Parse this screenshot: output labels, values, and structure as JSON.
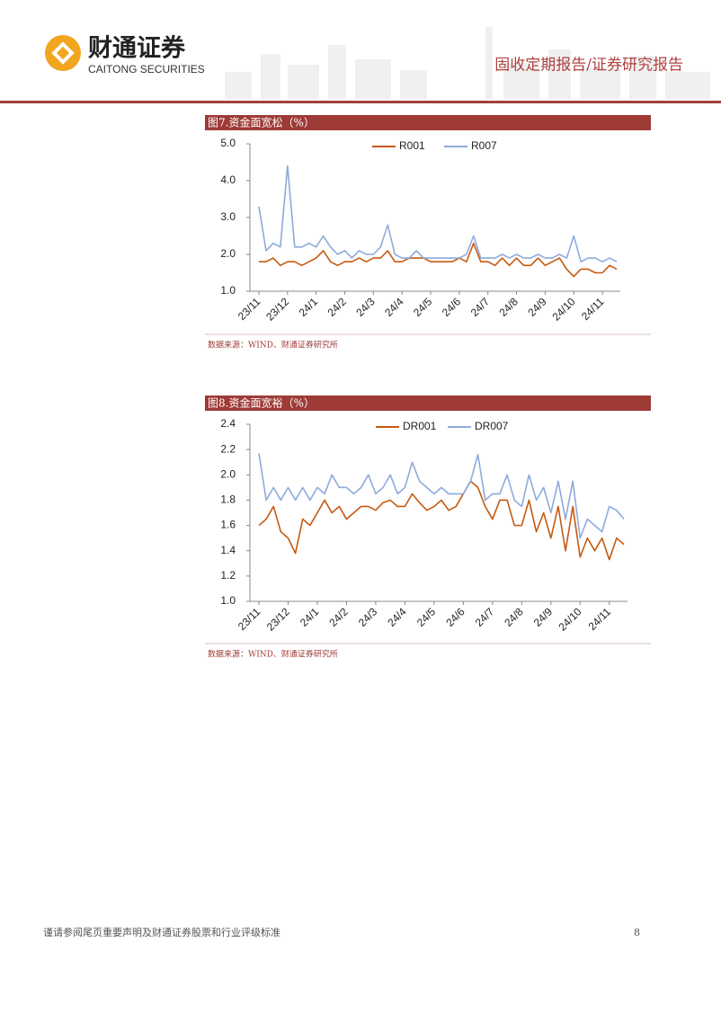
{
  "header": {
    "brand": "财通证券",
    "brand_en": "CAITONG SECURITIES",
    "report_type": "固收定期报告/证券研究报告"
  },
  "chart_data": [
    {
      "type": "line",
      "title": "图7.资金面宽松（%）",
      "source": "数据来源：WIND、财通证券研究所",
      "categories": [
        "23/11",
        null,
        null,
        null,
        "23/12",
        null,
        null,
        null,
        "24/1",
        null,
        null,
        null,
        "24/2",
        null,
        null,
        null,
        "24/3",
        null,
        null,
        null,
        "24/4",
        null,
        null,
        null,
        "24/5",
        null,
        null,
        null,
        "24/6",
        null,
        null,
        null,
        "24/7",
        null,
        null,
        null,
        "24/8",
        null,
        null,
        null,
        "24/9",
        null,
        null,
        null,
        "24/10",
        null,
        null,
        null,
        "24/11",
        null,
        null
      ],
      "series": [
        {
          "name": "R001",
          "color": "#c55a11",
          "values": [
            1.8,
            1.8,
            1.9,
            1.7,
            1.8,
            1.8,
            1.7,
            1.8,
            1.9,
            2.1,
            1.8,
            1.7,
            1.8,
            1.8,
            1.9,
            1.8,
            1.9,
            1.9,
            2.1,
            1.8,
            1.8,
            1.9,
            1.9,
            1.9,
            1.8,
            1.8,
            1.8,
            1.8,
            1.9,
            1.8,
            2.3,
            1.8,
            1.8,
            1.7,
            1.9,
            1.7,
            1.9,
            1.7,
            1.7,
            1.9,
            1.7,
            1.8,
            1.9,
            1.6,
            1.4,
            1.6,
            1.6,
            1.5,
            1.5,
            1.7,
            1.6
          ]
        },
        {
          "name": "R007",
          "color": "#8faadc",
          "values": [
            3.3,
            2.1,
            2.3,
            2.2,
            4.4,
            2.2,
            2.2,
            2.3,
            2.2,
            2.5,
            2.2,
            2.0,
            2.1,
            1.9,
            2.1,
            2.0,
            2.0,
            2.2,
            2.8,
            2.0,
            1.9,
            1.9,
            2.1,
            1.9,
            1.9,
            1.9,
            1.9,
            1.9,
            1.9,
            2.0,
            2.5,
            1.9,
            1.9,
            1.9,
            2.0,
            1.9,
            2.0,
            1.9,
            1.9,
            2.0,
            1.9,
            1.9,
            2.0,
            1.9,
            2.5,
            1.8,
            1.9,
            1.9,
            1.8,
            1.9,
            1.8
          ]
        }
      ],
      "ylim": [
        1,
        5
      ],
      "yticks": [
        {
          "value": 1,
          "label": "1.0"
        },
        {
          "value": 2,
          "label": "2.0"
        },
        {
          "value": 3,
          "label": "3.0"
        },
        {
          "value": 4,
          "label": "4.0"
        },
        {
          "value": 5,
          "label": "5.0"
        }
      ],
      "grid": false,
      "legend": "top"
    },
    {
      "type": "line",
      "title": "图8.资金面宽裕（%）",
      "source": "数据来源：WIND、财通证券研究所",
      "categories": [
        "23/11",
        null,
        null,
        null,
        "23/12",
        null,
        null,
        null,
        "24/1",
        null,
        null,
        null,
        "24/2",
        null,
        null,
        null,
        "24/3",
        null,
        null,
        null,
        "24/4",
        null,
        null,
        null,
        "24/5",
        null,
        null,
        null,
        "24/6",
        null,
        null,
        null,
        "24/7",
        null,
        null,
        null,
        "24/8",
        null,
        null,
        null,
        "24/9",
        null,
        null,
        null,
        "24/10",
        null,
        null,
        null,
        "24/11",
        null,
        null
      ],
      "series": [
        {
          "name": "DR001",
          "color": "#c55a11",
          "values": [
            1.6,
            1.65,
            1.75,
            1.55,
            1.5,
            1.38,
            1.65,
            1.6,
            1.7,
            1.8,
            1.7,
            1.75,
            1.65,
            1.7,
            1.75,
            1.75,
            1.72,
            1.78,
            1.8,
            1.75,
            1.75,
            1.85,
            1.78,
            1.72,
            1.75,
            1.8,
            1.72,
            1.75,
            1.85,
            1.95,
            1.9,
            1.75,
            1.65,
            1.8,
            1.8,
            1.6,
            1.6,
            1.8,
            1.55,
            1.7,
            1.5,
            1.75,
            1.4,
            1.75,
            1.35,
            1.5,
            1.4,
            1.5,
            1.33,
            1.5,
            1.45
          ]
        },
        {
          "name": "DR007",
          "color": "#8faadc",
          "values": [
            2.17,
            1.8,
            1.9,
            1.8,
            1.9,
            1.8,
            1.9,
            1.8,
            1.9,
            1.85,
            2.0,
            1.9,
            1.9,
            1.85,
            1.9,
            2.0,
            1.85,
            1.9,
            2.0,
            1.85,
            1.9,
            2.1,
            1.95,
            1.9,
            1.85,
            1.9,
            1.85,
            1.85,
            1.85,
            1.95,
            2.16,
            1.8,
            1.85,
            1.85,
            2.0,
            1.8,
            1.75,
            2.0,
            1.8,
            1.9,
            1.7,
            1.95,
            1.65,
            1.95,
            1.5,
            1.65,
            1.6,
            1.55,
            1.75,
            1.72,
            1.65
          ]
        }
      ],
      "ylim": [
        1,
        2.4
      ],
      "yticks": [
        {
          "value": 1,
          "label": "1.0"
        },
        {
          "value": 1.2,
          "label": "1.2"
        },
        {
          "value": 1.4,
          "label": "1.4"
        },
        {
          "value": 1.6,
          "label": "1.6"
        },
        {
          "value": 1.8,
          "label": "1.8"
        },
        {
          "value": 2,
          "label": "2.0"
        },
        {
          "value": 2.2,
          "label": "2.2"
        },
        {
          "value": 2.4,
          "label": "2.4"
        }
      ],
      "grid": false,
      "legend": "top"
    }
  ],
  "footer": {
    "disclaimer": "谨请参阅尾页重要声明及财通证券股票和行业评级标准",
    "page": "8"
  }
}
